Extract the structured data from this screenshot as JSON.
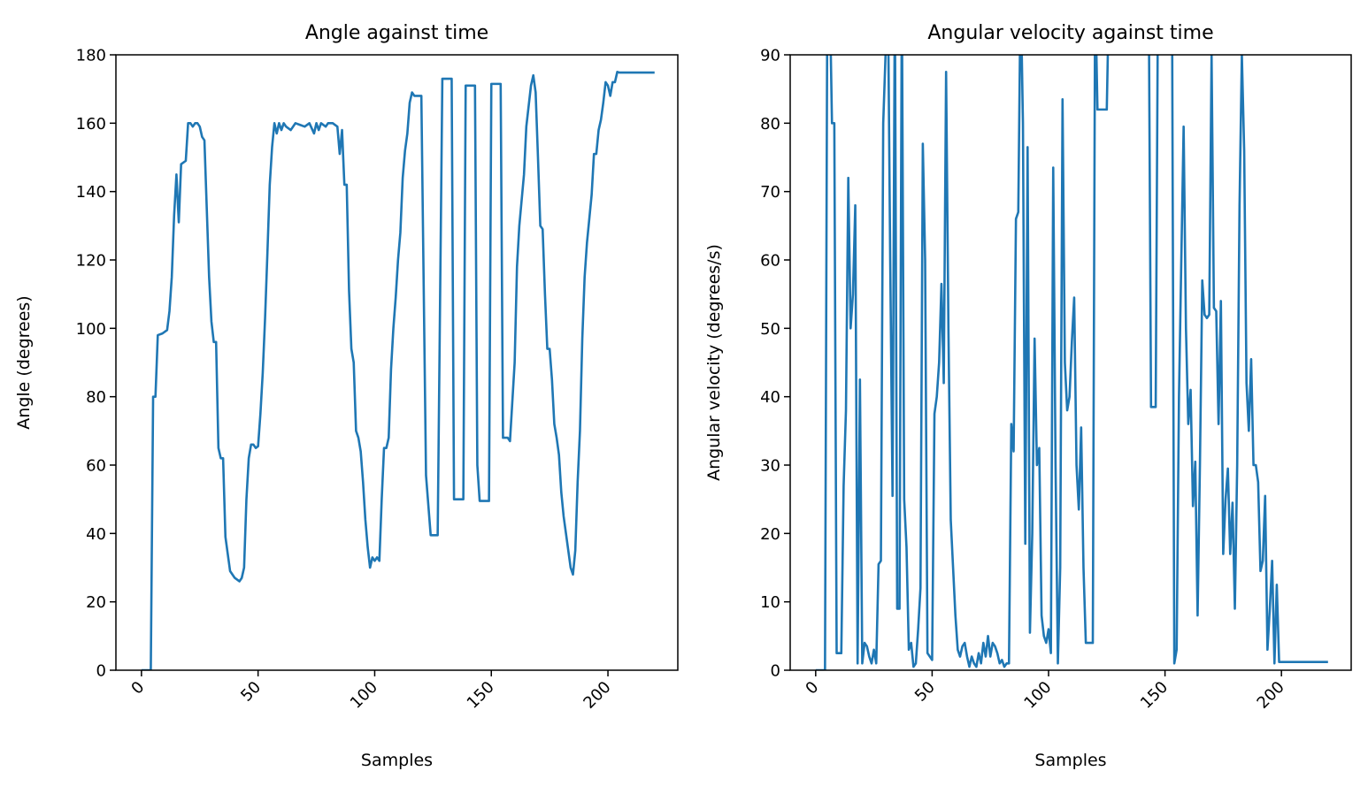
{
  "chart_data": [
    {
      "type": "line",
      "title": "Angle against time",
      "xlabel": "Samples",
      "ylabel": "Angle (degrees)",
      "color": "#1f77b4",
      "xlim": [
        -10.95,
        229.95
      ],
      "xticks": [
        0,
        50,
        100,
        150,
        200
      ],
      "ylim": [
        0,
        180
      ],
      "yticks": [
        0,
        20,
        40,
        60,
        80,
        100,
        120,
        140,
        160,
        180
      ],
      "x": [
        0,
        4,
        5,
        6,
        7,
        9,
        11,
        12,
        13,
        14,
        15,
        16,
        17,
        19,
        20,
        21,
        22,
        23,
        24,
        25,
        26,
        27,
        28,
        29,
        30,
        31,
        32,
        33,
        34,
        35,
        36,
        37,
        38,
        40,
        42,
        43,
        44,
        45,
        46,
        47,
        48,
        49,
        50,
        51,
        52,
        53,
        54,
        55,
        56,
        57,
        58,
        59,
        60,
        61,
        62,
        64,
        66,
        68,
        70,
        72,
        74,
        75,
        76,
        77,
        79,
        80,
        82,
        84,
        85,
        86,
        87,
        88,
        89,
        90,
        91,
        92,
        93,
        94,
        95,
        96,
        97,
        98,
        99,
        100,
        101,
        102,
        103,
        104,
        105,
        106,
        107,
        108,
        109,
        110,
        111,
        112,
        113,
        114,
        115,
        116,
        117,
        120,
        122,
        124,
        127,
        129,
        133,
        134,
        138,
        139,
        143,
        144,
        145,
        149,
        150,
        154,
        155,
        157,
        158,
        160,
        161,
        162,
        164,
        165,
        166,
        167,
        168,
        169,
        170,
        171,
        172,
        173,
        174,
        175,
        176,
        177,
        178,
        179,
        180,
        181,
        182,
        183,
        184,
        185,
        186,
        187,
        188,
        189,
        190,
        191,
        192,
        193,
        194,
        195,
        196,
        197,
        198,
        199,
        200,
        201,
        202,
        203,
        204,
        205,
        220
      ],
      "values": [
        0,
        0,
        80,
        80,
        98,
        98.5,
        99.5,
        105,
        115,
        133,
        145,
        131,
        148,
        149,
        160,
        160,
        159,
        160,
        160,
        159,
        156,
        155,
        135,
        115,
        102,
        96,
        96,
        65,
        62,
        62,
        39,
        34,
        29,
        27,
        26,
        27,
        30,
        50,
        62,
        66,
        66,
        65,
        65.5,
        75,
        87,
        103,
        122,
        142,
        153,
        160,
        157,
        160,
        158,
        160,
        159,
        158,
        160,
        159.5,
        159,
        160,
        157,
        160,
        158,
        160,
        159,
        160,
        160,
        159,
        151,
        158,
        142,
        142,
        111,
        94,
        90,
        70,
        68,
        64,
        55,
        44,
        36,
        30,
        33,
        32,
        33,
        32,
        50,
        65,
        65,
        68,
        88,
        100,
        109,
        120,
        128,
        144,
        152,
        157,
        166,
        169,
        168,
        168,
        57,
        39.5,
        39.5,
        173,
        173,
        50,
        50,
        171,
        171,
        60,
        49.5,
        49.5,
        171.5,
        171.5,
        68,
        68,
        67,
        90,
        118,
        130,
        145,
        159,
        165,
        171,
        174,
        169,
        150,
        130,
        129,
        110,
        94,
        94,
        85,
        72,
        68,
        63,
        52,
        45,
        40,
        35,
        30,
        28,
        35,
        55,
        70,
        97,
        115,
        125,
        132,
        139,
        151,
        151,
        158,
        161,
        166,
        172,
        171,
        168,
        172,
        172,
        175,
        174.8,
        174.8
      ]
    },
    {
      "type": "line",
      "title": "Angular velocity against time",
      "xlabel": "Samples",
      "ylabel": "Angular velocity (degrees/s)",
      "color": "#1f77b4",
      "xlim": [
        -10.95,
        229.95
      ],
      "xticks": [
        0,
        50,
        100,
        150,
        200
      ],
      "ylim": [
        0,
        90
      ],
      "yticks": [
        0,
        10,
        20,
        30,
        40,
        50,
        60,
        70,
        80,
        90
      ],
      "x": [
        0,
        4,
        5,
        6,
        7,
        8,
        9,
        10,
        11,
        12,
        13,
        14,
        15,
        16,
        17,
        18,
        19,
        20,
        21,
        22,
        23,
        24,
        25,
        26,
        27,
        28,
        29,
        30,
        31,
        32,
        33,
        34,
        35,
        36,
        37,
        38,
        39,
        40,
        41,
        42,
        43,
        44,
        45,
        46,
        47,
        48,
        49,
        50,
        51,
        52,
        53,
        54,
        55,
        56,
        57,
        58,
        59,
        60,
        61,
        62,
        63,
        64,
        65,
        66,
        67,
        68,
        69,
        70,
        71,
        72,
        73,
        74,
        75,
        76,
        77,
        78,
        79,
        80,
        81,
        82,
        83,
        84,
        85,
        86,
        87,
        88,
        89,
        90,
        91,
        92,
        93,
        94,
        95,
        96,
        97,
        98,
        99,
        100,
        101,
        102,
        103,
        104,
        105,
        106,
        107,
        108,
        109,
        110,
        111,
        112,
        113,
        114,
        115,
        116,
        117,
        118,
        119,
        120,
        121,
        125,
        126,
        143,
        144,
        146,
        147,
        153,
        154,
        155,
        156,
        157,
        158,
        159,
        160,
        161,
        162,
        163,
        164,
        165,
        166,
        167,
        168,
        169,
        170,
        171,
        172,
        173,
        174,
        175,
        176,
        177,
        178,
        179,
        180,
        181,
        182,
        183,
        184,
        185,
        186,
        187,
        188,
        189,
        190,
        191,
        192,
        193,
        194,
        195,
        196,
        197,
        198,
        199,
        220
      ],
      "values": [
        0,
        0,
        100,
        100,
        80,
        80,
        2.5,
        2.5,
        2.5,
        27,
        38,
        72,
        50,
        55,
        68,
        1,
        42.5,
        1,
        4,
        3.5,
        2,
        1,
        3,
        1,
        15.5,
        16,
        80,
        90,
        100,
        60,
        25.5,
        100,
        9,
        9,
        100,
        25,
        18,
        3,
        4,
        0.5,
        1,
        6,
        12,
        77,
        60,
        2.5,
        2,
        1.5,
        37.5,
        40,
        45,
        56.5,
        42,
        87.5,
        50,
        22,
        15,
        8,
        3,
        2,
        3.5,
        4,
        2,
        0.5,
        2,
        1,
        0.5,
        2.5,
        1,
        4,
        2,
        5,
        2,
        4,
        3.5,
        2.5,
        1,
        1.5,
        0.5,
        1,
        1,
        36,
        32,
        66,
        67,
        100,
        80,
        18.5,
        76.5,
        5.5,
        20,
        48.5,
        30,
        32.5,
        8,
        5,
        4,
        6,
        2.5,
        73.5,
        30,
        1,
        15,
        83.5,
        45,
        38,
        40,
        48,
        54.5,
        30,
        23.5,
        35.5,
        15,
        4,
        4,
        4,
        4,
        100,
        82,
        82,
        100,
        100,
        38.5,
        38.5,
        100,
        100,
        1,
        3,
        40,
        60,
        79.5,
        50,
        36,
        41,
        24,
        30.5,
        8,
        30,
        57,
        52,
        51.5,
        52,
        90,
        53,
        52.5,
        36,
        54,
        17,
        25,
        29.5,
        17,
        24.5,
        9,
        30,
        68,
        90,
        76,
        42,
        35,
        45.5,
        30,
        30,
        27.5,
        14.5,
        16,
        25.5,
        3,
        9,
        16,
        1,
        12.5,
        1.2,
        1.2
      ]
    }
  ]
}
